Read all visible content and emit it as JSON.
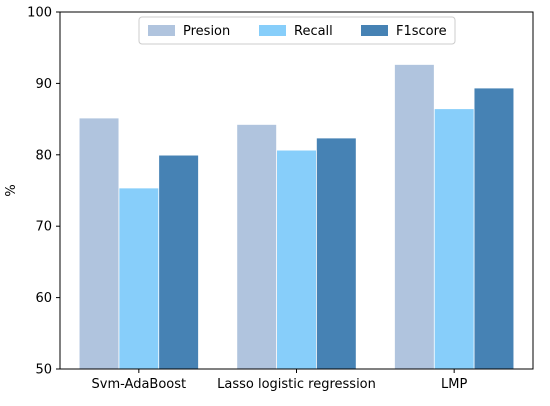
{
  "chart_data": {
    "type": "bar",
    "title": "",
    "xlabel": "",
    "ylabel": "%",
    "ylim": [
      50,
      100
    ],
    "yticks": [
      50,
      60,
      70,
      80,
      90,
      100
    ],
    "categories": [
      "Svm-AdaBoost",
      "Lasso logistic regression",
      "LMP"
    ],
    "series": [
      {
        "name": "Presion",
        "color": "#b0c4de",
        "values": [
          85.1,
          84.2,
          92.6
        ]
      },
      {
        "name": "Recall",
        "color": "#87cefa",
        "values": [
          75.3,
          80.6,
          86.4
        ]
      },
      {
        "name": "F1score",
        "color": "#4682b4",
        "values": [
          79.9,
          82.3,
          89.3
        ]
      }
    ],
    "legend_position": "top-center",
    "grid": false
  }
}
